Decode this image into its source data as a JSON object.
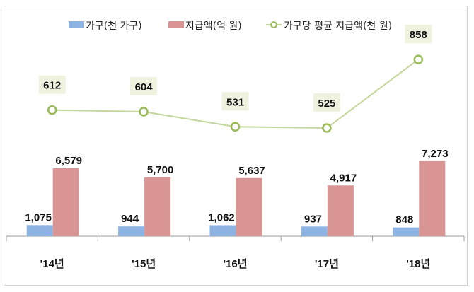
{
  "chart_data": {
    "type": "bar",
    "categories": [
      "'14년",
      "'15년",
      "'16년",
      "'17년",
      "'18년"
    ],
    "series": [
      {
        "name": "가구(천 가구)",
        "type": "bar",
        "color": "#8db3e2",
        "values": [
          1075,
          944,
          1062,
          937,
          848
        ],
        "labels": [
          "1,075",
          "944",
          "1,062",
          "937",
          "848"
        ]
      },
      {
        "name": "지급액(억 원)",
        "type": "bar",
        "color": "#d99594",
        "values": [
          6579,
          5700,
          5637,
          4917,
          7273
        ],
        "labels": [
          "6,579",
          "5,700",
          "5,637",
          "4,917",
          "7,273"
        ]
      },
      {
        "name": "가구당 평균 지급액(천 원)",
        "type": "line",
        "color": "#9bbb59",
        "values": [
          612,
          604,
          531,
          525,
          858
        ],
        "labels": [
          "612",
          "604",
          "531",
          "525",
          "858"
        ]
      }
    ],
    "legend_position": "top",
    "grid": false,
    "title": "",
    "xlabel": "",
    "ylabel": ""
  }
}
